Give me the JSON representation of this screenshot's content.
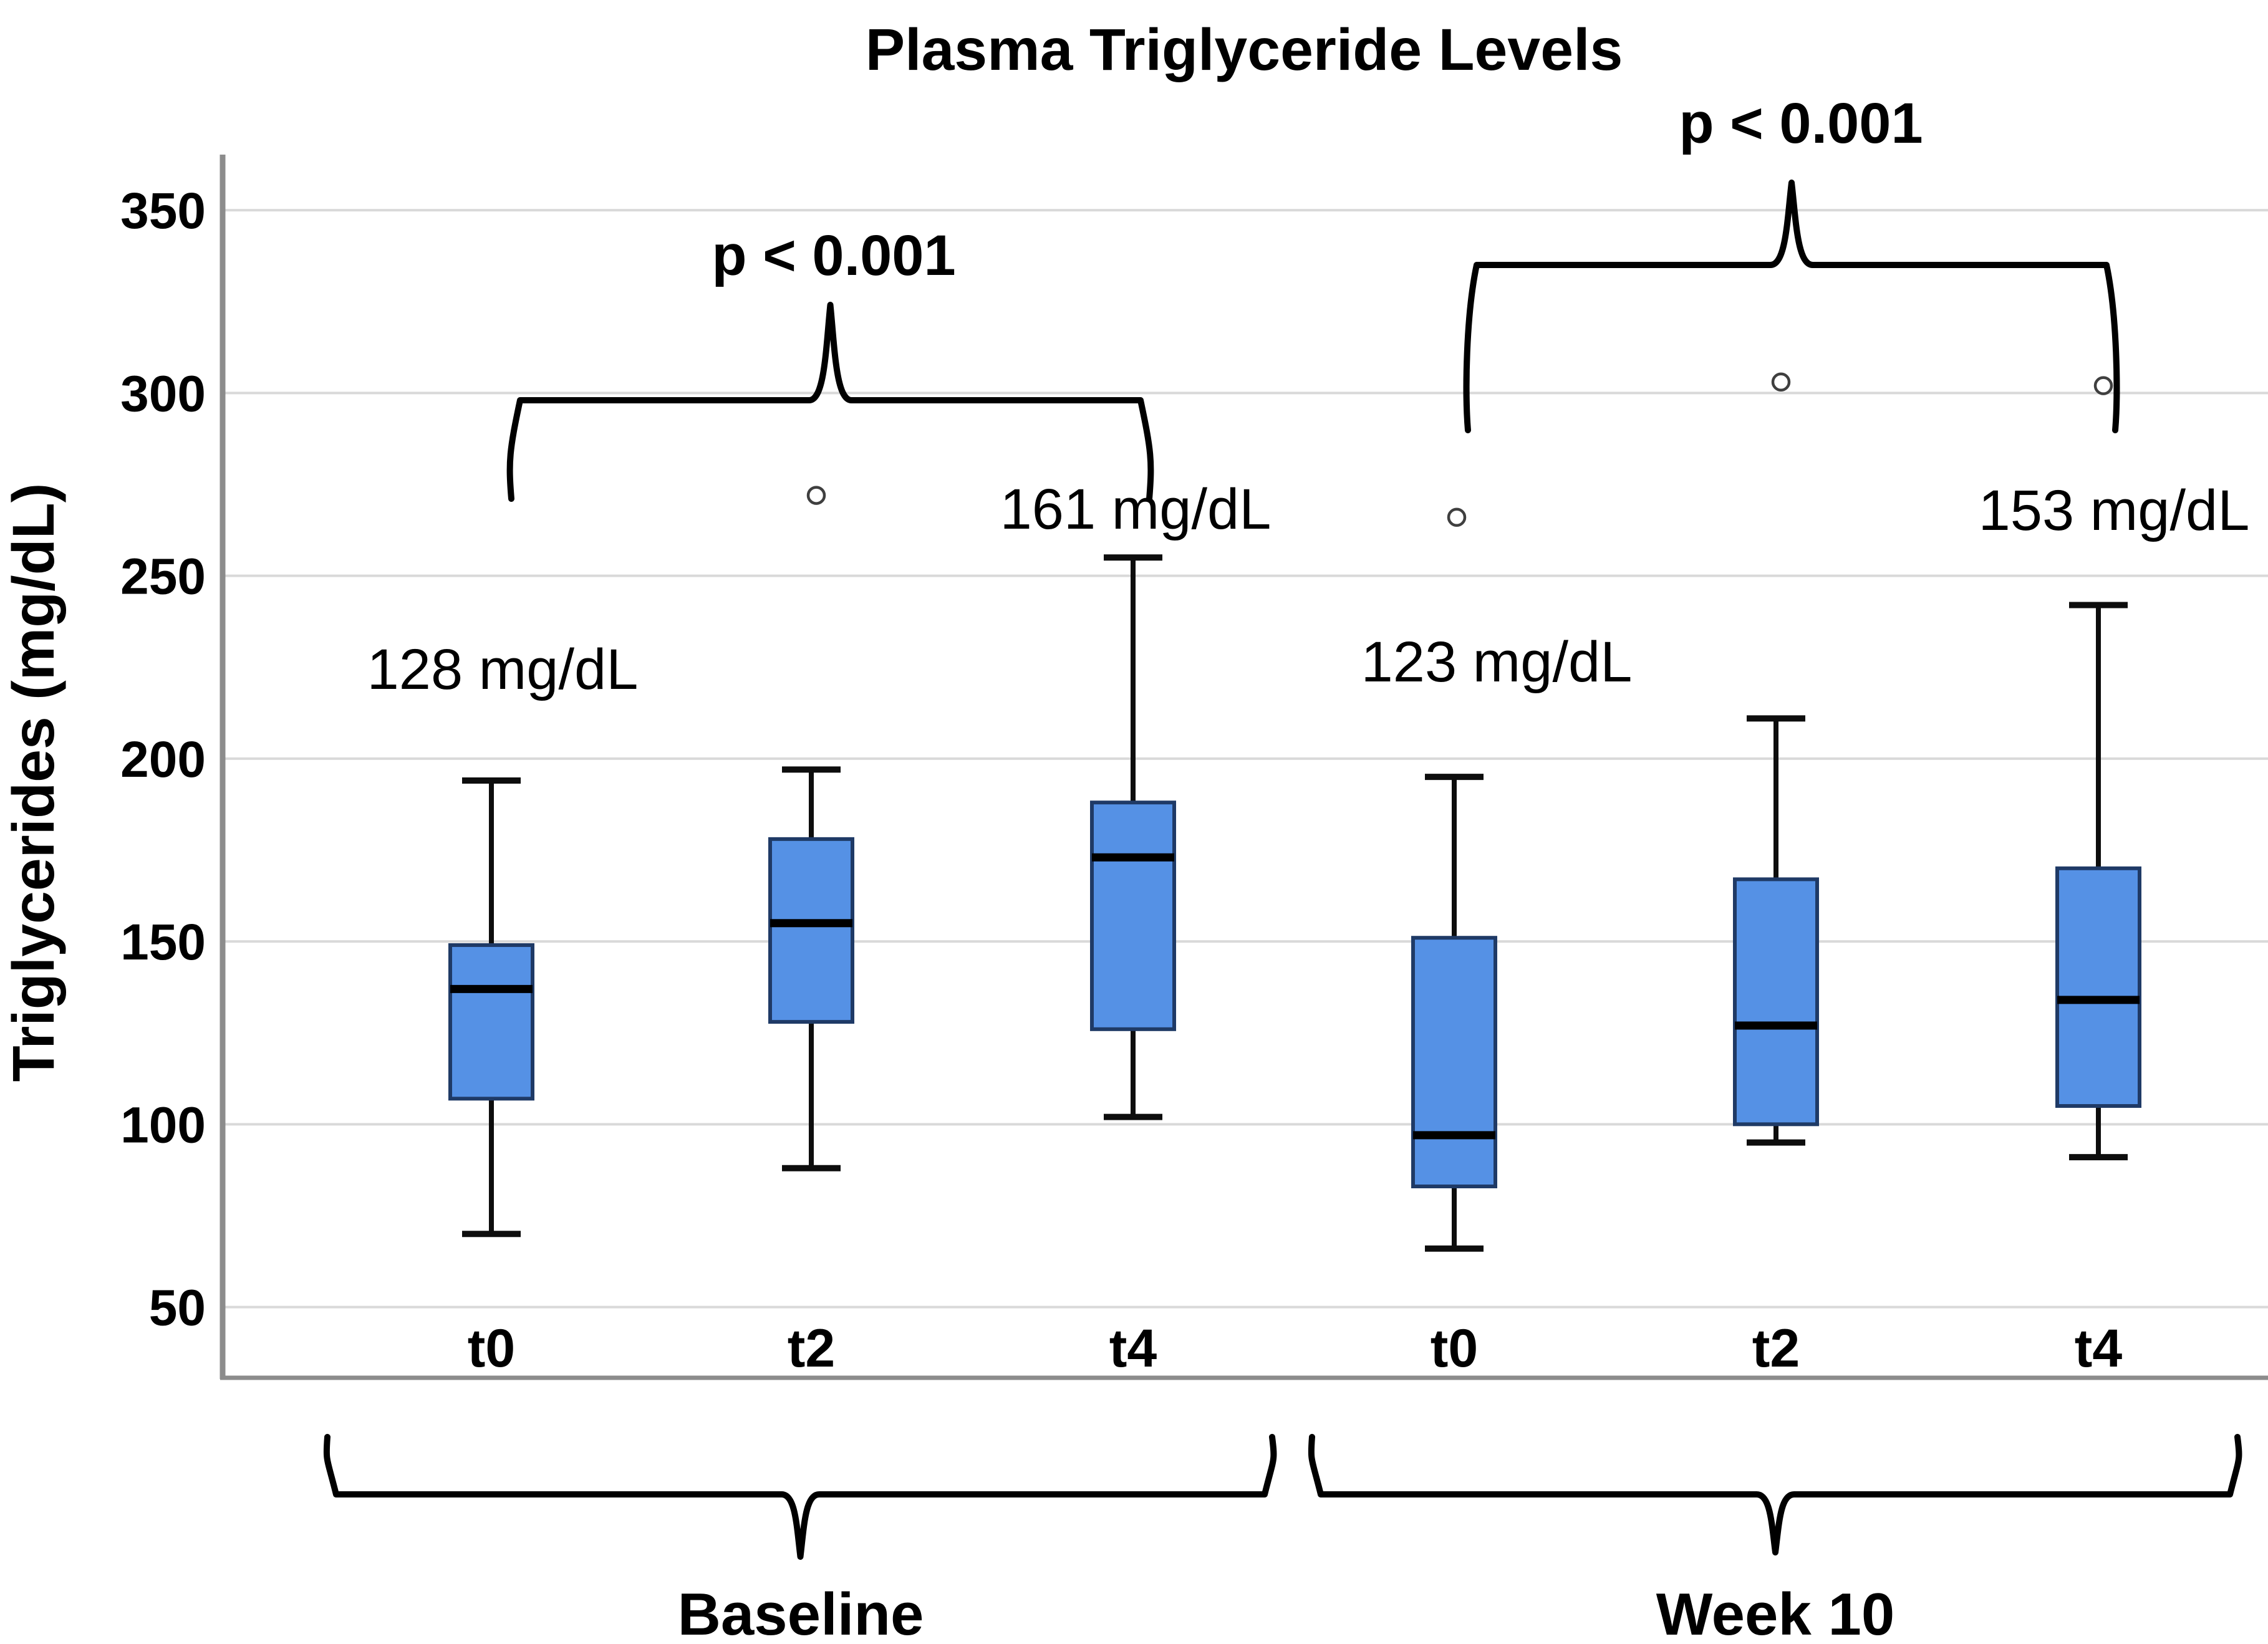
{
  "chart_data": {
    "type": "box",
    "title": "Plasma Triglyceride Levels",
    "ylabel": "Triglycerides (mg/dL)",
    "yticks": [
      350,
      300,
      250,
      200,
      150,
      100,
      50
    ],
    "ylim": [
      31,
      364
    ],
    "grid": "horizontal",
    "legend": "none",
    "categories": [
      "t0",
      "t2",
      "t4",
      "t0",
      "t2",
      "t4"
    ],
    "groups": [
      {
        "label": "Baseline",
        "box_indices": [
          0,
          1,
          2
        ]
      },
      {
        "label": "Week 10",
        "box_indices": [
          3,
          4,
          5
        ]
      }
    ],
    "boxes": [
      {
        "group": "Baseline",
        "category": "t0",
        "whisker_low": 70,
        "q1": 107,
        "median": 137,
        "q3": 149,
        "whisker_high": 194,
        "outliers": []
      },
      {
        "group": "Baseline",
        "category": "t2",
        "whisker_low": 88,
        "q1": 128,
        "median": 155,
        "q3": 178,
        "whisker_high": 197,
        "outliers": [
          272
        ]
      },
      {
        "group": "Baseline",
        "category": "t4",
        "whisker_low": 102,
        "q1": 126,
        "median": 173,
        "q3": 188,
        "whisker_high": 255,
        "outliers": []
      },
      {
        "group": "Week 10",
        "category": "t0",
        "whisker_low": 66,
        "q1": 83,
        "median": 97,
        "q3": 151,
        "whisker_high": 195,
        "outliers": [
          266
        ]
      },
      {
        "group": "Week 10",
        "category": "t2",
        "whisker_low": 95,
        "q1": 100,
        "median": 127,
        "q3": 167,
        "whisker_high": 211,
        "outliers": [
          303
        ]
      },
      {
        "group": "Week 10",
        "category": "t4",
        "whisker_low": 91,
        "q1": 105,
        "median": 134,
        "q3": 170,
        "whisker_high": 242,
        "outliers": [
          302
        ]
      }
    ],
    "annotations": {
      "means": [
        {
          "label": "128 mg/dL",
          "box_index": 0,
          "y_value": 224
        },
        {
          "label": "161 mg/dL",
          "box_index": 2,
          "y_value": 268
        },
        {
          "label": "123 mg/dL",
          "box_index": 3,
          "y_value": 226
        },
        {
          "label": "153 mg/dL",
          "box_index": 5,
          "y_value": 268
        }
      ],
      "p_values": [
        {
          "label": "p < 0.001",
          "between": [
            "Baseline t0",
            "Baseline t4"
          ]
        },
        {
          "label": "p < 0.001",
          "between": [
            "Week 10 t0",
            "Week 10 t4"
          ]
        }
      ]
    },
    "colors": {
      "box_fill": "#5591E5",
      "box_border": "#1F3A66",
      "median": "#000000",
      "whisker": "#0D0D0D",
      "gridline": "#D9D9D9",
      "axis": "#8C8C8C",
      "outlier_stroke": "#3F3F3F",
      "text": "#000000"
    }
  }
}
